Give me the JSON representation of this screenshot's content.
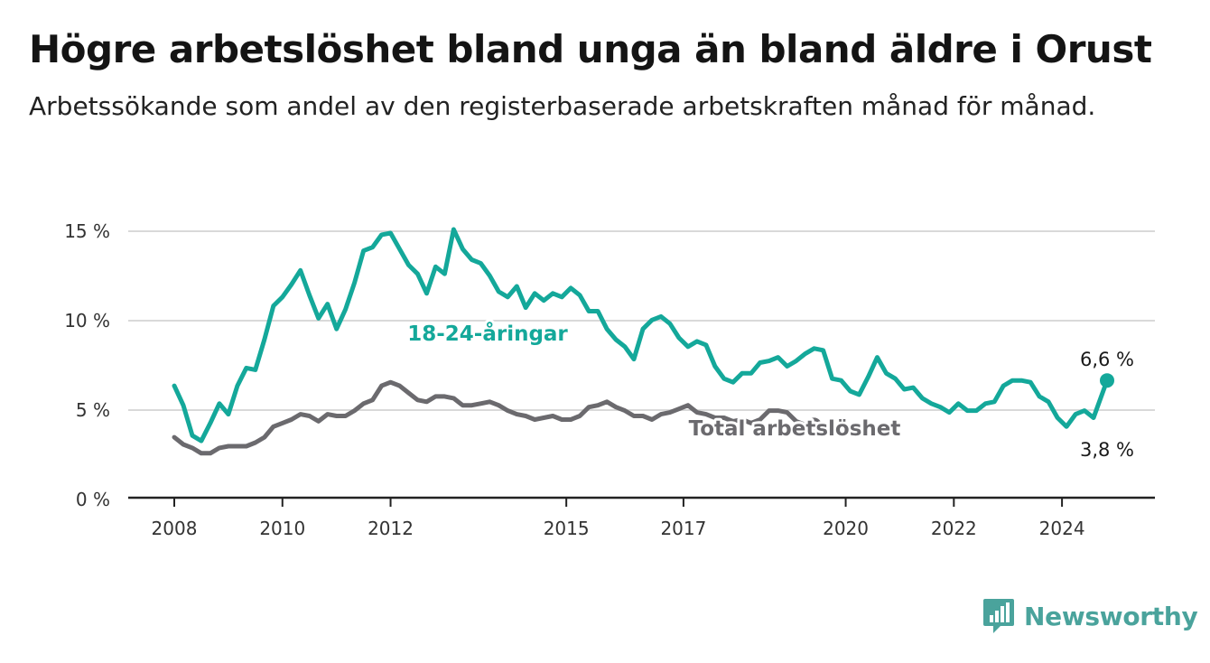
{
  "title": "Högre arbetslöshet bland unga än bland äldre i Orust",
  "subtitle": "Arbetssökande som andel av den registerbaserade arbetskraften månad för månad.",
  "brand": "Newsworthy",
  "colors": {
    "youth": "#14a89a",
    "total": "#6b6a6e",
    "grid": "#d9d9d9",
    "axis": "#222222",
    "brand": "#4aa39c"
  },
  "chart_data": {
    "type": "line",
    "title": "Högre arbetslöshet bland unga än bland äldre i Orust",
    "subtitle": "Arbetssökande som andel av den registerbaserade arbetskraften månad för månad.",
    "xlabel": "",
    "ylabel": "",
    "ylim": [
      0,
      15
    ],
    "xlim": [
      "2008-01",
      "2025-04"
    ],
    "y_ticks": [
      0,
      5,
      10,
      15
    ],
    "y_tick_labels": [
      "0 %",
      "5 %",
      "10 %",
      "15 %"
    ],
    "x_ticks": [
      "2008-01",
      "2010-01",
      "2012-01",
      "2015-04",
      "2017-06",
      "2020-06",
      "2022-06",
      "2024-06"
    ],
    "x_tick_labels": [
      "2008",
      "2010",
      "2012",
      "2015",
      "2017",
      "2020",
      "2022",
      "2024"
    ],
    "grid": true,
    "legend": "inline labels",
    "series": [
      {
        "name": "18-24-åringar",
        "color": "#14a89a",
        "end_label": "6,6 %",
        "points": [
          [
            "2008-01",
            6.3
          ],
          [
            "2008-03",
            5.2
          ],
          [
            "2008-05",
            3.5
          ],
          [
            "2008-07",
            3.2
          ],
          [
            "2008-09",
            4.2
          ],
          [
            "2008-11",
            5.3
          ],
          [
            "2009-01",
            4.7
          ],
          [
            "2009-03",
            6.3
          ],
          [
            "2009-05",
            7.3
          ],
          [
            "2009-07",
            7.2
          ],
          [
            "2009-09",
            8.9
          ],
          [
            "2009-11",
            10.8
          ],
          [
            "2010-01",
            11.3
          ],
          [
            "2010-03",
            12.0
          ],
          [
            "2010-05",
            12.8
          ],
          [
            "2010-07",
            11.4
          ],
          [
            "2010-09",
            10.1
          ],
          [
            "2010-11",
            10.9
          ],
          [
            "2011-01",
            9.5
          ],
          [
            "2011-03",
            10.6
          ],
          [
            "2011-05",
            12.1
          ],
          [
            "2011-07",
            13.9
          ],
          [
            "2011-09",
            14.1
          ],
          [
            "2011-11",
            14.8
          ],
          [
            "2012-01",
            14.9
          ],
          [
            "2012-03",
            14.0
          ],
          [
            "2012-05",
            13.1
          ],
          [
            "2012-07",
            12.6
          ],
          [
            "2012-09",
            11.5
          ],
          [
            "2012-11",
            13.0
          ],
          [
            "2013-01",
            12.6
          ],
          [
            "2013-03",
            15.1
          ],
          [
            "2013-05",
            14.0
          ],
          [
            "2013-07",
            13.4
          ],
          [
            "2013-09",
            13.2
          ],
          [
            "2013-11",
            12.5
          ],
          [
            "2014-01",
            11.6
          ],
          [
            "2014-03",
            11.3
          ],
          [
            "2014-05",
            11.9
          ],
          [
            "2014-07",
            10.7
          ],
          [
            "2014-09",
            11.5
          ],
          [
            "2014-11",
            11.1
          ],
          [
            "2015-01",
            11.5
          ],
          [
            "2015-03",
            11.3
          ],
          [
            "2015-05",
            11.8
          ],
          [
            "2015-07",
            11.4
          ],
          [
            "2015-09",
            10.5
          ],
          [
            "2015-11",
            10.5
          ],
          [
            "2016-01",
            9.5
          ],
          [
            "2016-03",
            8.9
          ],
          [
            "2016-05",
            8.5
          ],
          [
            "2016-07",
            7.8
          ],
          [
            "2016-09",
            9.5
          ],
          [
            "2016-11",
            10.0
          ],
          [
            "2017-01",
            10.2
          ],
          [
            "2017-03",
            9.8
          ],
          [
            "2017-05",
            9.0
          ],
          [
            "2017-07",
            8.5
          ],
          [
            "2017-09",
            8.8
          ],
          [
            "2017-11",
            8.6
          ],
          [
            "2018-01",
            7.4
          ],
          [
            "2018-03",
            6.7
          ],
          [
            "2018-05",
            6.5
          ],
          [
            "2018-07",
            7.0
          ],
          [
            "2018-09",
            7.0
          ],
          [
            "2018-11",
            7.6
          ],
          [
            "2019-01",
            7.7
          ],
          [
            "2019-03",
            7.9
          ],
          [
            "2019-05",
            7.4
          ],
          [
            "2019-07",
            7.7
          ],
          [
            "2019-09",
            8.1
          ],
          [
            "2019-11",
            8.4
          ],
          [
            "2020-01",
            8.3
          ],
          [
            "2020-03",
            6.7
          ],
          [
            "2020-05",
            6.6
          ],
          [
            "2020-07",
            6.0
          ],
          [
            "2020-09",
            5.8
          ],
          [
            "2020-11",
            6.8
          ],
          [
            "2021-01",
            7.9
          ],
          [
            "2021-03",
            7.0
          ],
          [
            "2021-05",
            6.7
          ],
          [
            "2021-07",
            6.1
          ],
          [
            "2021-09",
            6.2
          ],
          [
            "2021-11",
            5.6
          ],
          [
            "2022-01",
            5.3
          ],
          [
            "2022-03",
            5.1
          ],
          [
            "2022-05",
            4.8
          ],
          [
            "2022-07",
            5.3
          ],
          [
            "2022-09",
            4.9
          ],
          [
            "2022-11",
            4.9
          ],
          [
            "2023-01",
            5.3
          ],
          [
            "2023-03",
            5.4
          ],
          [
            "2023-05",
            6.3
          ],
          [
            "2023-07",
            6.6
          ],
          [
            "2023-09",
            6.6
          ],
          [
            "2023-11",
            6.5
          ],
          [
            "2024-01",
            5.7
          ],
          [
            "2024-03",
            5.4
          ],
          [
            "2024-05",
            4.5
          ],
          [
            "2024-07",
            4.0
          ],
          [
            "2024-09",
            4.7
          ],
          [
            "2024-11",
            4.9
          ],
          [
            "2025-01",
            4.5
          ],
          [
            "2025-04",
            6.6
          ]
        ]
      },
      {
        "name": "Total arbetslöshet",
        "color": "#6b6a6e",
        "end_label": "3,8 %",
        "points": [
          [
            "2008-01",
            3.4
          ],
          [
            "2008-03",
            3.0
          ],
          [
            "2008-05",
            2.8
          ],
          [
            "2008-07",
            2.5
          ],
          [
            "2008-09",
            2.5
          ],
          [
            "2008-11",
            2.8
          ],
          [
            "2009-01",
            2.9
          ],
          [
            "2009-03",
            2.9
          ],
          [
            "2009-05",
            2.9
          ],
          [
            "2009-07",
            3.1
          ],
          [
            "2009-09",
            3.4
          ],
          [
            "2009-11",
            4.0
          ],
          [
            "2010-01",
            4.2
          ],
          [
            "2010-03",
            4.4
          ],
          [
            "2010-05",
            4.7
          ],
          [
            "2010-07",
            4.6
          ],
          [
            "2010-09",
            4.3
          ],
          [
            "2010-11",
            4.7
          ],
          [
            "2011-01",
            4.6
          ],
          [
            "2011-03",
            4.6
          ],
          [
            "2011-05",
            4.9
          ],
          [
            "2011-07",
            5.3
          ],
          [
            "2011-09",
            5.5
          ],
          [
            "2011-11",
            6.3
          ],
          [
            "2012-01",
            6.5
          ],
          [
            "2012-03",
            6.3
          ],
          [
            "2012-05",
            5.9
          ],
          [
            "2012-07",
            5.5
          ],
          [
            "2012-09",
            5.4
          ],
          [
            "2012-11",
            5.7
          ],
          [
            "2013-01",
            5.7
          ],
          [
            "2013-03",
            5.6
          ],
          [
            "2013-05",
            5.2
          ],
          [
            "2013-07",
            5.2
          ],
          [
            "2013-09",
            5.3
          ],
          [
            "2013-11",
            5.4
          ],
          [
            "2014-01",
            5.2
          ],
          [
            "2014-03",
            4.9
          ],
          [
            "2014-05",
            4.7
          ],
          [
            "2014-07",
            4.6
          ],
          [
            "2014-09",
            4.4
          ],
          [
            "2014-11",
            4.5
          ],
          [
            "2015-01",
            4.6
          ],
          [
            "2015-03",
            4.4
          ],
          [
            "2015-05",
            4.4
          ],
          [
            "2015-07",
            4.6
          ],
          [
            "2015-09",
            5.1
          ],
          [
            "2015-11",
            5.2
          ],
          [
            "2016-01",
            5.4
          ],
          [
            "2016-03",
            5.1
          ],
          [
            "2016-05",
            4.9
          ],
          [
            "2016-07",
            4.6
          ],
          [
            "2016-09",
            4.6
          ],
          [
            "2016-11",
            4.4
          ],
          [
            "2017-01",
            4.7
          ],
          [
            "2017-03",
            4.8
          ],
          [
            "2017-05",
            5.0
          ],
          [
            "2017-07",
            5.2
          ],
          [
            "2017-09",
            4.8
          ],
          [
            "2017-11",
            4.7
          ],
          [
            "2018-01",
            4.5
          ],
          [
            "2018-03",
            4.5
          ],
          [
            "2018-05",
            4.3
          ],
          [
            "2018-07",
            4.4
          ],
          [
            "2018-09",
            4.2
          ],
          [
            "2018-11",
            4.4
          ],
          [
            "2019-01",
            4.9
          ],
          [
            "2019-03",
            4.9
          ],
          [
            "2019-05",
            4.8
          ],
          [
            "2019-07",
            4.3
          ],
          [
            "2019-09",
            4.1
          ],
          [
            "2019-11",
            4.1
          ]
        ]
      }
    ]
  }
}
